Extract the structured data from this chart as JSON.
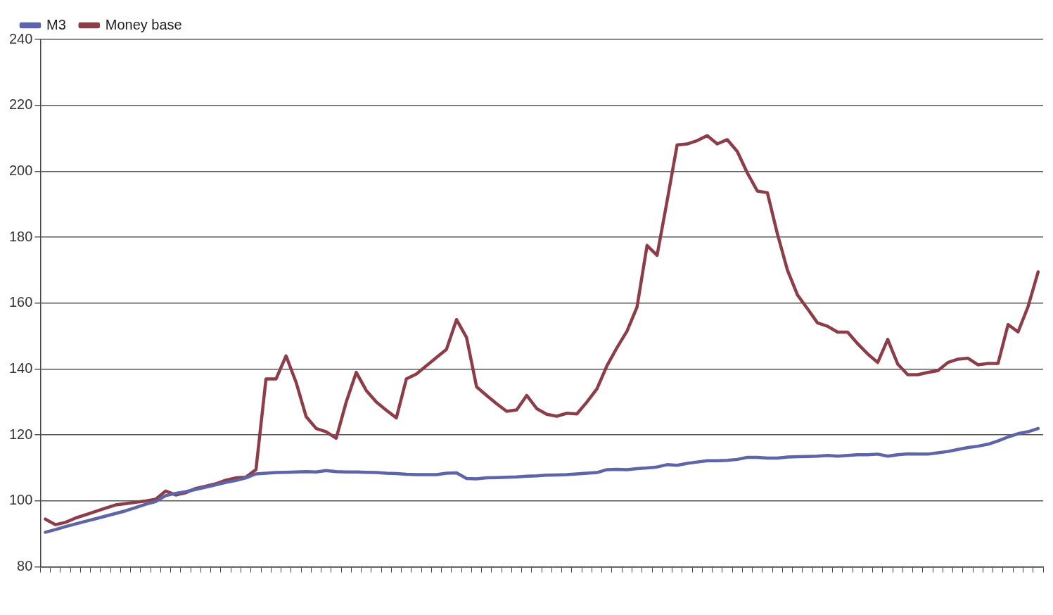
{
  "chart_data": {
    "type": "line",
    "categories": [
      null,
      null,
      null,
      null,
      null,
      null,
      null,
      null,
      null,
      null,
      null,
      null,
      null,
      null,
      null,
      null,
      null,
      null,
      null,
      null,
      null,
      null,
      null,
      null,
      null,
      null,
      null,
      null,
      null,
      null,
      null,
      null,
      null,
      null,
      null,
      null,
      null,
      null,
      null,
      null,
      null,
      null,
      null,
      null,
      null,
      null,
      null,
      null,
      null,
      null,
      null,
      null,
      null,
      null,
      null,
      null,
      null,
      null,
      null,
      null,
      null,
      null,
      null,
      null,
      null,
      null,
      null,
      null,
      null,
      null,
      null,
      null,
      null,
      null,
      null,
      null,
      null,
      null,
      null,
      null,
      null,
      null,
      null,
      null,
      null,
      null,
      null,
      null,
      null,
      null,
      null,
      null,
      null,
      null,
      null,
      null,
      null,
      null,
      null,
      null
    ],
    "series": [
      {
        "name": "M3",
        "color": "#5d64a8",
        "values": [
          90.5,
          91.3,
          92.2,
          93.0,
          93.8,
          94.6,
          95.4,
          96.2,
          97.0,
          98.0,
          99.0,
          99.8,
          101.6,
          102.3,
          102.8,
          103.5,
          104.2,
          104.9,
          105.6,
          106.2,
          107.0,
          108.2,
          108.4,
          108.6,
          108.7,
          108.8,
          108.9,
          108.8,
          109.2,
          108.9,
          108.8,
          108.8,
          108.7,
          108.6,
          108.4,
          108.3,
          108.1,
          108.0,
          108.0,
          108.0,
          108.4,
          108.5,
          106.8,
          106.7,
          107.0,
          107.1,
          107.2,
          107.3,
          107.5,
          107.6,
          107.8,
          107.9,
          108.0,
          108.2,
          108.4,
          108.6,
          109.5,
          109.6,
          109.5,
          109.8,
          110.0,
          110.3,
          111.0,
          110.8,
          111.4,
          111.8,
          112.2,
          112.2,
          112.3,
          112.6,
          113.2,
          113.2,
          113.0,
          113.0,
          113.3,
          113.4,
          113.5,
          113.6,
          113.8,
          113.6,
          113.8,
          114.0,
          114.0,
          114.2,
          113.6,
          114.0,
          114.3,
          114.2,
          114.2,
          114.6,
          115.0,
          115.6,
          116.2,
          116.6,
          117.2,
          118.2,
          119.4,
          120.4,
          121.0,
          122.0
        ]
      },
      {
        "name": "Money base",
        "color": "#8c3d47",
        "values": [
          94.5,
          92.8,
          93.5,
          94.8,
          95.8,
          96.8,
          97.8,
          98.8,
          99.2,
          99.6,
          100.0,
          100.5,
          103.0,
          101.8,
          102.5,
          103.8,
          104.5,
          105.2,
          106.3,
          107.0,
          107.2,
          109.5,
          137.0,
          137.0,
          144.0,
          136.0,
          125.6,
          122.0,
          121.0,
          119.0,
          130.0,
          139.0,
          133.5,
          130.0,
          127.5,
          125.2,
          137.0,
          138.5,
          141.0,
          143.5,
          146.0,
          155.0,
          149.6,
          134.6,
          132.0,
          129.5,
          127.2,
          127.6,
          132.0,
          128.0,
          126.3,
          125.7,
          126.6,
          126.4,
          130.0,
          134.0,
          141.0,
          146.5,
          151.5,
          158.8,
          177.5,
          174.5,
          191.0,
          208.0,
          208.3,
          209.3,
          210.8,
          208.3,
          209.6,
          206.0,
          199.5,
          194.0,
          193.5,
          181.0,
          170.0,
          162.5,
          158.3,
          154.0,
          153.0,
          151.2,
          151.2,
          147.7,
          144.6,
          142.0,
          149.0,
          141.5,
          138.3,
          138.3,
          139.0,
          139.5,
          142.0,
          143.0,
          143.3,
          141.3,
          141.7,
          141.7,
          153.5,
          151.3,
          159.0,
          169.5
        ]
      }
    ],
    "ylim": [
      80,
      240
    ],
    "yticks": [
      80,
      100,
      120,
      140,
      160,
      180,
      200,
      220,
      240
    ],
    "grid": "y",
    "legend": "top",
    "marker": "none",
    "line_style": "solid"
  }
}
